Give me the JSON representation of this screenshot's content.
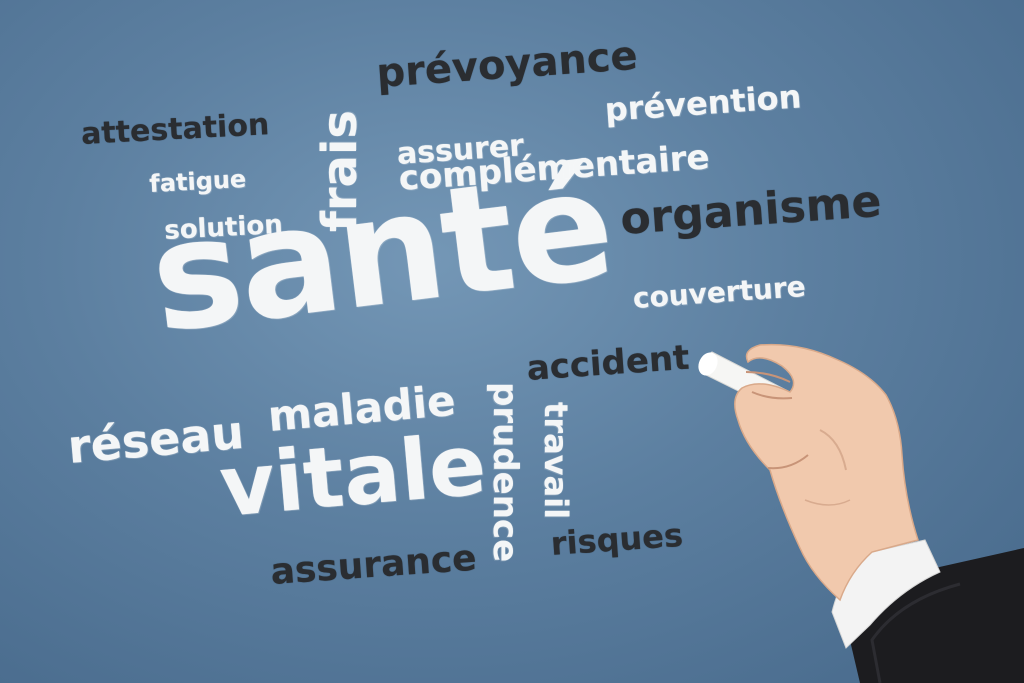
{
  "words": {
    "sante": "santé",
    "vitale": "vitale",
    "prevoyance": "prévoyance",
    "organisme": "organisme",
    "attestation": "attestation",
    "assurance": "assurance",
    "accident": "accident",
    "risques": "risques",
    "prevention": "prévention",
    "assurer": "assurer",
    "complementaire": "complémentaire",
    "fatigue": "fatigue",
    "solution": "solution",
    "couverture": "couverture",
    "reseau": "réseau",
    "maladie": "maladie",
    "frais": "frais",
    "prudence": "prudence",
    "travail": "travail"
  },
  "colors": {
    "board": "#5c7fa0",
    "chalk_white": "#f4f6f7",
    "dark_text": "#2a2d31",
    "skin": "#f1c9ad",
    "sleeve": "#1c1c1f",
    "cuff": "#f3f3f3"
  }
}
